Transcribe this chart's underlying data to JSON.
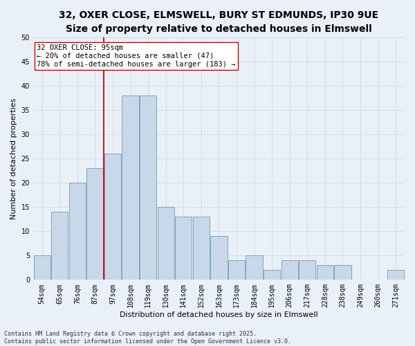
{
  "title_line1": "32, OXER CLOSE, ELMSWELL, BURY ST EDMUNDS, IP30 9UE",
  "title_line2": "Size of property relative to detached houses in Elmswell",
  "xlabel": "Distribution of detached houses by size in Elmswell",
  "ylabel": "Number of detached properties",
  "categories": [
    "54sqm",
    "65sqm",
    "76sqm",
    "87sqm",
    "97sqm",
    "108sqm",
    "119sqm",
    "130sqm",
    "141sqm",
    "152sqm",
    "163sqm",
    "173sqm",
    "184sqm",
    "195sqm",
    "206sqm",
    "217sqm",
    "228sqm",
    "238sqm",
    "249sqm",
    "260sqm",
    "271sqm"
  ],
  "values": [
    5,
    14,
    20,
    23,
    26,
    38,
    38,
    15,
    13,
    13,
    9,
    4,
    5,
    2,
    4,
    4,
    3,
    3,
    0,
    0,
    2
  ],
  "bar_color": "#c8d8e8",
  "bar_edge_color": "#7799bb",
  "vline_x": 4.0,
  "vline_color": "#cc0000",
  "annotation_text": "32 OXER CLOSE: 95sqm\n← 20% of detached houses are smaller (47)\n78% of semi-detached houses are larger (183) →",
  "annotation_box_color": "#ffffff",
  "annotation_box_edge": "#cc0000",
  "ylim": [
    0,
    50
  ],
  "yticks": [
    0,
    5,
    10,
    15,
    20,
    25,
    30,
    35,
    40,
    45,
    50
  ],
  "grid_color": "#d0d8e8",
  "background_color": "#eaf0f8",
  "footer_text": "Contains HM Land Registry data © Crown copyright and database right 2025.\nContains public sector information licensed under the Open Government Licence v3.0.",
  "title_fontsize": 10,
  "subtitle_fontsize": 9,
  "axis_label_fontsize": 8,
  "tick_fontsize": 7,
  "annotation_fontsize": 7.5
}
